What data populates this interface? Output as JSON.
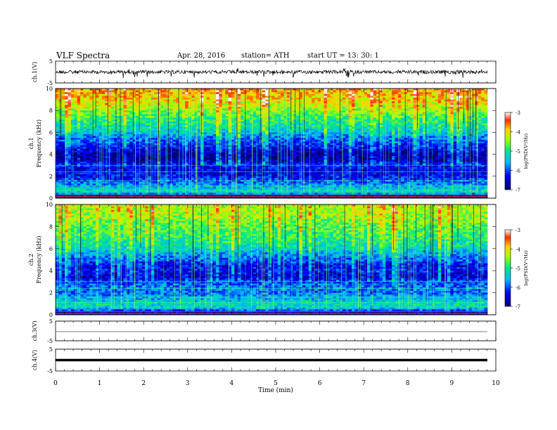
{
  "header": {
    "title": "VLF  Spectra",
    "date": "Apr. 28, 2016",
    "station": "station= ATH",
    "start": "start  UT  =    13: 30: 1"
  },
  "chart_data": [
    {
      "type": "line",
      "id": "ch1-waveform",
      "ylabel": "ch.1(V)",
      "ylim": [
        -5,
        5
      ],
      "yticks": [
        "5",
        "-5"
      ],
      "baseline": 0,
      "xlim": [
        0,
        10
      ]
    },
    {
      "type": "heatmap",
      "id": "ch1-spectrogram",
      "ylabel": "ch.1\nFrequency  (kHz)",
      "ylabel_lines": [
        "ch.1",
        "Frequency  (kHz)"
      ],
      "ylim": [
        0,
        10
      ],
      "yticks": [
        "10",
        "8",
        "6",
        "4",
        "2",
        "0"
      ],
      "xlim": [
        0,
        9.8
      ],
      "colorbar": {
        "label": "log(PSD(V²/Hz)",
        "ticks": [
          "-3",
          "-4",
          "-5",
          "-6",
          "-7"
        ],
        "range": [
          -7,
          -3
        ]
      },
      "frequency_profile_kHz_logPSD": [
        [
          0.2,
          -6.9
        ],
        [
          0.5,
          -5.2
        ],
        [
          1.0,
          -5.5
        ],
        [
          1.5,
          -6.0
        ],
        [
          2.0,
          -6.3
        ],
        [
          2.5,
          -6.5
        ],
        [
          3.0,
          -6.2
        ],
        [
          3.5,
          -6.7
        ],
        [
          4.0,
          -6.8
        ],
        [
          4.5,
          -6.4
        ],
        [
          5.0,
          -6.1
        ],
        [
          5.5,
          -5.9
        ],
        [
          6.0,
          -5.4
        ],
        [
          7.0,
          -5.0
        ],
        [
          8.0,
          -4.5
        ],
        [
          9.0,
          -4.0
        ],
        [
          10.0,
          -3.8
        ]
      ]
    },
    {
      "type": "heatmap",
      "id": "ch2-spectrogram",
      "ylabel": "ch.2\nFrequency  (kHz)",
      "ylabel_lines": [
        "ch.2",
        "Frequency  (kHz)"
      ],
      "ylim": [
        0,
        10
      ],
      "yticks": [
        "10",
        "8",
        "6",
        "4",
        "2",
        "0"
      ],
      "xlim": [
        0,
        9.8
      ],
      "colorbar": {
        "label": "log(PSD(V²/Hz)",
        "ticks": [
          "-3",
          "-4",
          "-5",
          "-6",
          "-7"
        ],
        "range": [
          -7,
          -3
        ]
      },
      "frequency_profile_kHz_logPSD": [
        [
          0.2,
          -6.8
        ],
        [
          0.5,
          -5.6
        ],
        [
          1.0,
          -5.2
        ],
        [
          1.5,
          -5.6
        ],
        [
          2.0,
          -5.9
        ],
        [
          2.5,
          -5.8
        ],
        [
          3.0,
          -6.1
        ],
        [
          3.5,
          -6.6
        ],
        [
          4.0,
          -6.3
        ],
        [
          4.5,
          -6.4
        ],
        [
          5.0,
          -5.9
        ],
        [
          5.5,
          -5.7
        ],
        [
          6.0,
          -5.3
        ],
        [
          7.0,
          -4.9
        ],
        [
          8.0,
          -4.7
        ],
        [
          9.0,
          -4.4
        ],
        [
          10.0,
          -4.3
        ]
      ]
    },
    {
      "type": "line",
      "id": "ch3-waveform",
      "ylabel": "ch.3(V)",
      "ylim": [
        -5,
        5
      ],
      "yticks": [
        "5",
        "-5"
      ],
      "baseline": 0
    },
    {
      "type": "line",
      "id": "ch4-waveform",
      "ylabel": "ch.4(V)",
      "ylim": [
        -5,
        5
      ],
      "yticks": [
        "5",
        "-5"
      ],
      "baseline": 0
    }
  ],
  "xaxis": {
    "label": "Time  (min)",
    "ticks": [
      "0",
      "1",
      "2",
      "3",
      "4",
      "5",
      "6",
      "7",
      "8",
      "9",
      "10"
    ],
    "range": [
      0,
      10
    ]
  }
}
